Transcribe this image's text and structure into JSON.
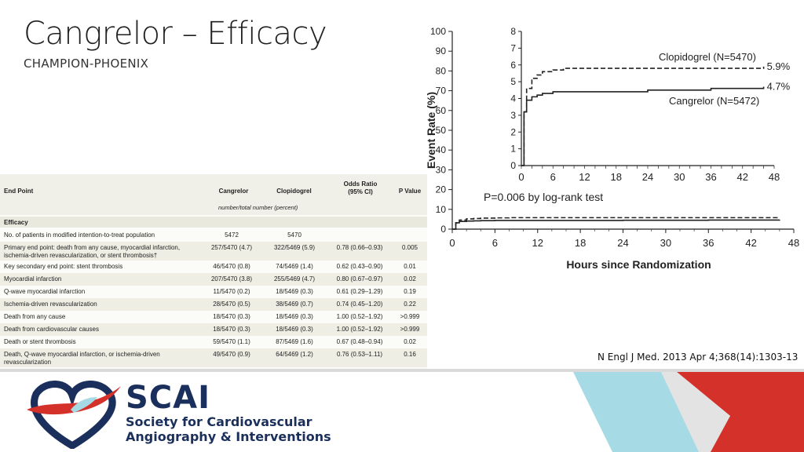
{
  "slide": {
    "title": "Cangrelor – Efficacy",
    "subtitle": "CHAMPION-PHOENIX",
    "citation": "N Engl J Med. 2013 Apr 4;368(14):1303-13"
  },
  "table": {
    "headers": {
      "end_point": "End Point",
      "cangrelor": "Cangrelor",
      "clopidogrel": "Clopidogrel",
      "odds_ratio_l1": "Odds Ratio",
      "odds_ratio_l2": "(95% CI)",
      "p_value": "P Value",
      "number_note": "number/total number (percent)"
    },
    "section": "Efficacy",
    "rows": [
      {
        "end_point": "No. of patients in modified intention-to-treat population",
        "cangrelor": "5472",
        "clopidogrel": "5470",
        "or": "",
        "p": ""
      },
      {
        "end_point": "Primary end point: death from any cause, myocardial infarction, ischemia-driven revascularization, or stent thrombosis†",
        "cangrelor": "257/5470 (4.7)",
        "clopidogrel": "322/5469 (5.9)",
        "or": "0.78 (0.66–0.93)",
        "p": "0.005"
      },
      {
        "end_point": "Key secondary end point: stent thrombosis",
        "cangrelor": "46/5470 (0.8)",
        "clopidogrel": "74/5469 (1.4)",
        "or": "0.62 (0.43–0.90)",
        "p": "0.01"
      },
      {
        "end_point": "Myocardial infarction",
        "cangrelor": "207/5470 (3.8)",
        "clopidogrel": "255/5469 (4.7)",
        "or": "0.80 (0.67–0.97)",
        "p": "0.02"
      },
      {
        "end_point": "Q-wave myocardial infarction",
        "cangrelor": "11/5470 (0.2)",
        "clopidogrel": "18/5469 (0.3)",
        "or": "0.61 (0.29–1.29)",
        "p": "0.19"
      },
      {
        "end_point": "Ischemia-driven revascularization",
        "cangrelor": "28/5470 (0.5)",
        "clopidogrel": "38/5469 (0.7)",
        "or": "0.74 (0.45–1.20)",
        "p": "0.22"
      },
      {
        "end_point": "Death from any cause",
        "cangrelor": "18/5470 (0.3)",
        "clopidogrel": "18/5469 (0.3)",
        "or": "1.00 (0.52–1.92)",
        "p": ">0.999"
      },
      {
        "end_point": "Death from cardiovascular causes",
        "cangrelor": "18/5470 (0.3)",
        "clopidogrel": "18/5469 (0.3)",
        "or": "1.00 (0.52–1.92)",
        "p": ">0.999"
      },
      {
        "end_point": "Death or stent thrombosis",
        "cangrelor": "59/5470 (1.1)",
        "clopidogrel": "87/5469 (1.6)",
        "or": "0.67 (0.48–0.94)",
        "p": "0.02"
      },
      {
        "end_point": "Death, Q-wave myocardial infarction, or ischemia-driven revascularization",
        "cangrelor": "49/5470 (0.9)",
        "clopidogrel": "64/5469 (1.2)",
        "or": "0.76 (0.53–1.11)",
        "p": "0.16"
      }
    ]
  },
  "chart_data": {
    "type": "line",
    "xlabel": "Hours since Randomization",
    "ylabel": "Event Rate (%)",
    "x_ticks": [
      0,
      6,
      12,
      18,
      24,
      30,
      36,
      42,
      48
    ],
    "y_ticks": [
      0,
      10,
      20,
      30,
      40,
      50,
      60,
      70,
      80,
      90,
      100
    ],
    "xlim": [
      0,
      48
    ],
    "ylim": [
      0,
      100
    ],
    "annotation": "P=0.006 by log-rank test",
    "series": [
      {
        "name": "Clopidogrel (N=5470)",
        "style": "dashed",
        "end_label": "5.9%",
        "x": [
          0,
          0.5,
          1,
          2,
          3,
          4,
          6,
          8,
          12,
          18,
          24,
          30,
          36,
          42,
          46
        ],
        "y": [
          0,
          3.2,
          4.6,
          5.2,
          5.4,
          5.6,
          5.7,
          5.8,
          5.8,
          5.8,
          5.8,
          5.8,
          5.8,
          5.8,
          5.9
        ]
      },
      {
        "name": "Cangrelor (N=5472)",
        "style": "solid",
        "end_label": "4.7%",
        "x": [
          0,
          0.5,
          1,
          2,
          3,
          4,
          6,
          8,
          12,
          18,
          24,
          30,
          36,
          42,
          46
        ],
        "y": [
          0,
          3.2,
          3.9,
          4.1,
          4.2,
          4.3,
          4.4,
          4.4,
          4.4,
          4.4,
          4.5,
          4.5,
          4.6,
          4.6,
          4.7
        ]
      }
    ],
    "inset": {
      "x_ticks": [
        0,
        6,
        12,
        18,
        24,
        30,
        36,
        42,
        48
      ],
      "y_ticks": [
        0,
        1,
        2,
        3,
        4,
        5,
        6,
        7,
        8
      ],
      "xlim": [
        0,
        48
      ],
      "ylim": [
        0,
        8
      ]
    }
  },
  "colors": {
    "navy": "#1b2f5c",
    "red": "#d3312a",
    "light_blue": "#a6dbe6",
    "grey_band": "#d7d7d7"
  }
}
